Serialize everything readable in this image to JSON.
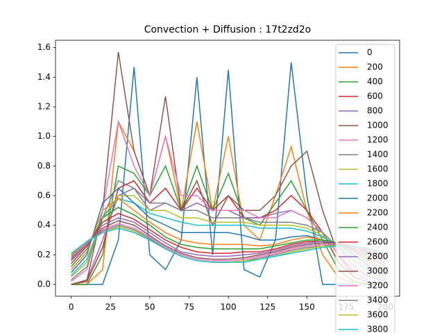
{
  "chart_data": {
    "type": "line",
    "title": "Convection + Diffusion : 17t2zd2o",
    "x": [
      0,
      10,
      20,
      30,
      40,
      50,
      60,
      70,
      80,
      90,
      100,
      110,
      120,
      130,
      140,
      150,
      160,
      170,
      180,
      190,
      200
    ],
    "xlim": [
      -10,
      209
    ],
    "ylim": [
      -0.08,
      1.65
    ],
    "xticks": [
      0,
      25,
      50,
      75,
      100,
      125,
      150,
      175,
      200
    ],
    "yticks": [
      {
        "value": 0,
        "label": "0.0"
      },
      0.2,
      0.4,
      0.6,
      0.8,
      {
        "value": 1,
        "label": "1.0"
      },
      1.2,
      1.4,
      1.6
    ],
    "legend": "upper right",
    "series": [
      {
        "name": "0",
        "color": "#1f77b4",
        "values": [
          0,
          0,
          0,
          0.3,
          1.47,
          0.2,
          0.1,
          0.3,
          1.4,
          0.2,
          1.45,
          0.1,
          0.05,
          0.3,
          1.5,
          0.6,
          0,
          0,
          0,
          0,
          0
        ]
      },
      {
        "name": "200",
        "color": "#ff7f0e",
        "values": [
          0,
          0,
          0.1,
          1.1,
          0.9,
          0.6,
          1.0,
          0.5,
          1.1,
          0.5,
          1.0,
          0.4,
          0.3,
          0.6,
          0.93,
          0.5,
          0.2,
          0.05,
          0,
          0,
          0
        ]
      },
      {
        "name": "400",
        "color": "#2ca02c",
        "values": [
          0,
          0,
          0.2,
          0.8,
          0.75,
          0.6,
          0.8,
          0.5,
          0.8,
          0.5,
          0.75,
          0.45,
          0.4,
          0.55,
          0.7,
          0.5,
          0.3,
          0.1,
          0.02,
          0,
          0
        ]
      },
      {
        "name": "600",
        "color": "#d62728",
        "values": [
          0,
          0.02,
          0.25,
          0.65,
          0.7,
          0.55,
          0.65,
          0.5,
          0.65,
          0.5,
          0.6,
          0.45,
          0.45,
          0.5,
          0.6,
          0.5,
          0.35,
          0.15,
          0.05,
          0.01,
          0
        ]
      },
      {
        "name": "800",
        "color": "#9467bd",
        "values": [
          0,
          0.03,
          0.3,
          0.6,
          0.65,
          0.5,
          0.55,
          0.5,
          0.55,
          0.5,
          0.5,
          0.45,
          0.45,
          0.48,
          0.5,
          0.45,
          0.35,
          0.2,
          0.08,
          0.02,
          0
        ]
      },
      {
        "name": "1000",
        "color": "#8c564b",
        "values": [
          0,
          0.03,
          0.5,
          1.57,
          0.9,
          0.6,
          1.27,
          0.5,
          0.7,
          0.4,
          0.6,
          0.5,
          0.5,
          0.6,
          0.8,
          0.9,
          0.5,
          0.2,
          0.05,
          0.01,
          0
        ]
      },
      {
        "name": "1200",
        "color": "#e377c2",
        "values": [
          0.02,
          0.1,
          0.5,
          1.1,
          0.8,
          0.6,
          1.0,
          0.6,
          0.6,
          0.5,
          0.5,
          0.5,
          0.45,
          0.45,
          0.5,
          0.45,
          0.35,
          0.2,
          0.1,
          0.05,
          0.02
        ]
      },
      {
        "name": "1400",
        "color": "#7f7f7f",
        "values": [
          0.03,
          0.12,
          0.45,
          0.7,
          0.65,
          0.55,
          0.55,
          0.5,
          0.5,
          0.45,
          0.45,
          0.45,
          0.42,
          0.42,
          0.42,
          0.4,
          0.35,
          0.25,
          0.12,
          0.05,
          0.02
        ]
      },
      {
        "name": "1600",
        "color": "#bcbd22",
        "values": [
          0.05,
          0.15,
          0.45,
          0.6,
          0.6,
          0.5,
          0.5,
          0.45,
          0.45,
          0.42,
          0.42,
          0.42,
          0.4,
          0.4,
          0.4,
          0.38,
          0.33,
          0.25,
          0.15,
          0.07,
          0.03
        ]
      },
      {
        "name": "1800",
        "color": "#17becf",
        "values": [
          0.06,
          0.17,
          0.45,
          0.58,
          0.55,
          0.48,
          0.45,
          0.42,
          0.4,
          0.4,
          0.4,
          0.4,
          0.38,
          0.38,
          0.38,
          0.36,
          0.32,
          0.26,
          0.17,
          0.09,
          0.04
        ]
      },
      {
        "name": "2000",
        "color": "#1f77b4",
        "values": [
          0.08,
          0.2,
          0.55,
          0.65,
          0.55,
          0.45,
          0.4,
          0.35,
          0.35,
          0.35,
          0.35,
          0.33,
          0.3,
          0.3,
          0.32,
          0.33,
          0.3,
          0.27,
          0.2,
          0.12,
          0.06
        ]
      },
      {
        "name": "2200",
        "color": "#ff7f0e",
        "values": [
          0.1,
          0.22,
          0.5,
          0.58,
          0.5,
          0.42,
          0.35,
          0.3,
          0.28,
          0.27,
          0.27,
          0.27,
          0.26,
          0.27,
          0.3,
          0.32,
          0.3,
          0.27,
          0.22,
          0.14,
          0.08
        ]
      },
      {
        "name": "2400",
        "color": "#2ca02c",
        "values": [
          0.12,
          0.24,
          0.45,
          0.52,
          0.47,
          0.4,
          0.32,
          0.27,
          0.25,
          0.24,
          0.24,
          0.24,
          0.24,
          0.26,
          0.28,
          0.3,
          0.3,
          0.28,
          0.23,
          0.16,
          0.1
        ]
      },
      {
        "name": "2600",
        "color": "#d62728",
        "values": [
          0.14,
          0.26,
          0.42,
          0.48,
          0.44,
          0.37,
          0.3,
          0.25,
          0.22,
          0.21,
          0.21,
          0.22,
          0.22,
          0.24,
          0.27,
          0.29,
          0.29,
          0.28,
          0.24,
          0.18,
          0.12
        ]
      },
      {
        "name": "2800",
        "color": "#9467bd",
        "values": [
          0.16,
          0.27,
          0.4,
          0.45,
          0.42,
          0.35,
          0.28,
          0.22,
          0.2,
          0.19,
          0.19,
          0.2,
          0.21,
          0.23,
          0.26,
          0.28,
          0.29,
          0.28,
          0.25,
          0.2,
          0.14
        ]
      },
      {
        "name": "3000",
        "color": "#8c564b",
        "values": [
          0.17,
          0.28,
          0.38,
          0.43,
          0.4,
          0.33,
          0.26,
          0.21,
          0.18,
          0.17,
          0.17,
          0.18,
          0.2,
          0.22,
          0.25,
          0.27,
          0.28,
          0.28,
          0.26,
          0.21,
          0.16
        ]
      },
      {
        "name": "3200",
        "color": "#e377c2",
        "values": [
          0.18,
          0.28,
          0.37,
          0.41,
          0.38,
          0.32,
          0.25,
          0.2,
          0.17,
          0.16,
          0.16,
          0.17,
          0.19,
          0.21,
          0.24,
          0.26,
          0.27,
          0.27,
          0.26,
          0.22,
          0.17
        ]
      },
      {
        "name": "3400",
        "color": "#7f7f7f",
        "values": [
          0.19,
          0.29,
          0.36,
          0.4,
          0.37,
          0.31,
          0.24,
          0.19,
          0.16,
          0.15,
          0.15,
          0.16,
          0.18,
          0.2,
          0.23,
          0.25,
          0.26,
          0.27,
          0.26,
          0.23,
          0.19
        ]
      },
      {
        "name": "3600",
        "color": "#bcbd22",
        "values": [
          0.2,
          0.29,
          0.35,
          0.39,
          0.36,
          0.3,
          0.24,
          0.19,
          0.16,
          0.15,
          0.15,
          0.16,
          0.17,
          0.19,
          0.22,
          0.24,
          0.26,
          0.26,
          0.26,
          0.24,
          0.2
        ]
      },
      {
        "name": "3800",
        "color": "#17becf",
        "values": [
          0.21,
          0.29,
          0.35,
          0.38,
          0.35,
          0.3,
          0.24,
          0.19,
          0.16,
          0.15,
          0.15,
          0.15,
          0.17,
          0.19,
          0.21,
          0.23,
          0.25,
          0.26,
          0.26,
          0.24,
          0.21
        ]
      }
    ]
  }
}
